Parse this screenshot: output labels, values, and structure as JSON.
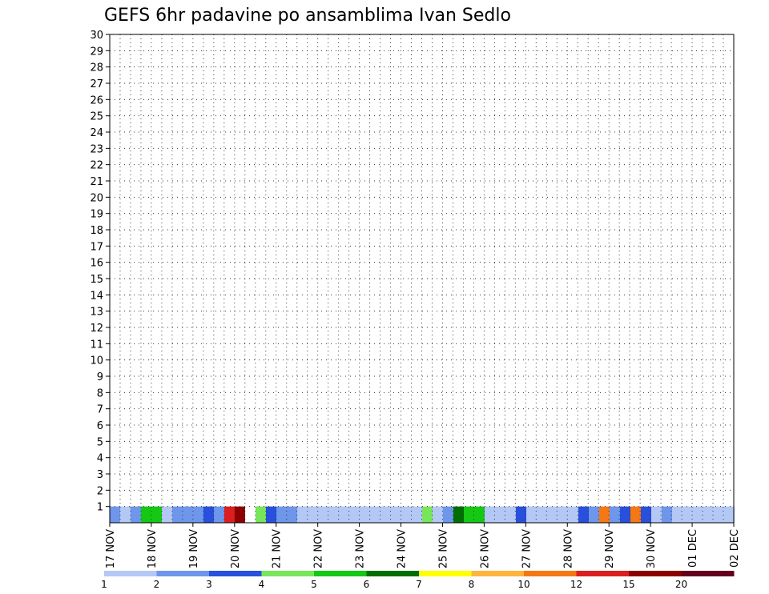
{
  "chart_data": {
    "type": "heatmap",
    "title": "GEFS 6hr padavine po ansamblima Ivan Sedlo",
    "y_members": [
      "1",
      "2",
      "3",
      "4",
      "5",
      "6",
      "7",
      "8",
      "9",
      "10",
      "11",
      "12",
      "13",
      "14",
      "15",
      "16",
      "17",
      "18",
      "19",
      "20",
      "21",
      "22",
      "23",
      "24",
      "25",
      "26",
      "27",
      "28",
      "29",
      "30"
    ],
    "x_dates": [
      "17 NOV",
      "18 NOV",
      "19 NOV",
      "20 NOV",
      "21 NOV",
      "22 NOV",
      "23 NOV",
      "24 NOV",
      "25 NOV",
      "26 NOV",
      "27 NOV",
      "28 NOV",
      "29 NOV",
      "30 NOV",
      "01 DEC",
      "02 DEC"
    ],
    "time_step": "6hr",
    "grid": "dotted",
    "colorbar": {
      "thresholds": [
        "1",
        "2",
        "3",
        "4",
        "5",
        "6",
        "7",
        "8",
        "10",
        "12",
        "15",
        "20"
      ],
      "colors": [
        "#b4c8f5",
        "#6e96eb",
        "#2850dc",
        "#78e65a",
        "#14c814",
        "#006e00",
        "#ffff00",
        "#ffb43c",
        "#f57814",
        "#dc1e1e",
        "#8c0000",
        "#64001e"
      ]
    },
    "z_levels": "cell index 1..12 into colorbar.colors",
    "z": {
      "1": "2|1|2|5|5|1|2|2|2|3|2|10|11||4|3|2|2|1|1|1|1|1|1|1|1|1|1|1|1|4|1|2|6|5|5|1|1|1|3|1|1|1|1|1|3|2|9|2|3|9|3|1|2|1|1|1|1|1|1|2|3|9|2|2|3|1|3|3|1|1|1|2|2|2|2|2|1|1|1|1|1|1|1|1|1|1|1|3|10|2|2|2|1|1|1|1|1|1|1|1|1|1|1|1|1|1|2|1|2|1|1|1|1|1|1|1|1|1|1|1|1|2|1|1|1|1|1|2|1|1|1|1|1|1",
      "2": "",
      "3": "",
      "4": ""
    }
  }
}
